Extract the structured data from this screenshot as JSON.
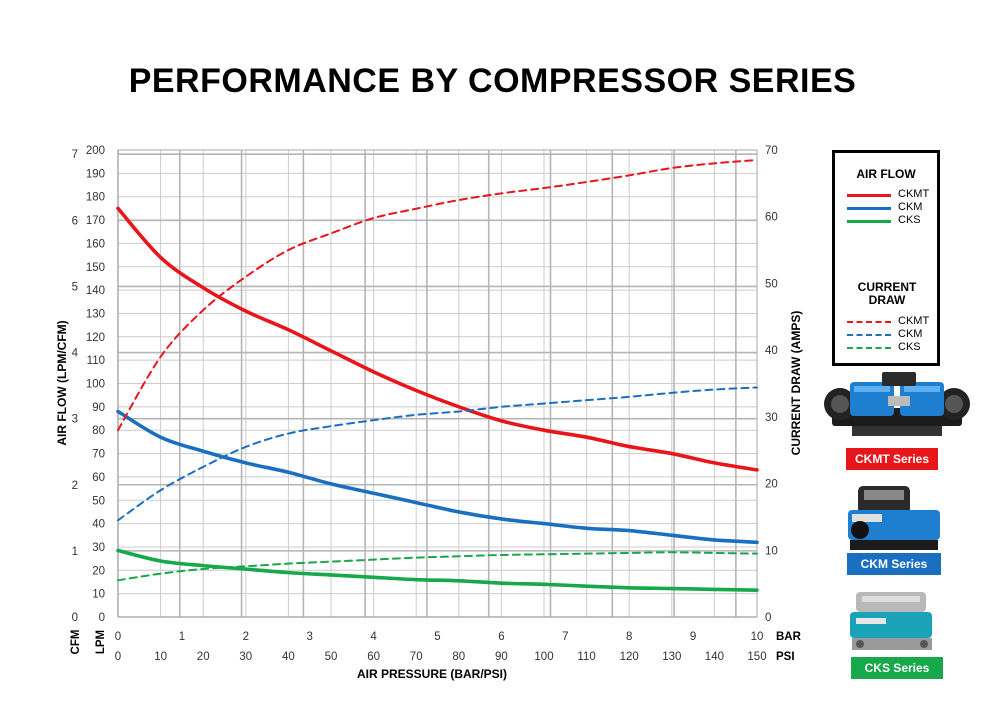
{
  "title": "PERFORMANCE BY COMPRESSOR SERIES",
  "colors": {
    "ckmt": "#e8151b",
    "ckm": "#1a6fc1",
    "cks": "#16a84a",
    "grid": "#cccccc"
  },
  "legend": {
    "airflow_title": "AIR FLOW",
    "current_title_1": "CURRENT",
    "current_title_2": "DRAW",
    "airflow_items": [
      "CKMT",
      "CKM",
      "CKS"
    ],
    "current_items": [
      "CKMT",
      "CKM",
      "CKS"
    ]
  },
  "products": [
    {
      "label": "CKMT Series",
      "color": "#e8151b"
    },
    {
      "label": "CKM Series",
      "color": "#1a6fc1"
    },
    {
      "label": "CKS Series",
      "color": "#16a84a"
    }
  ],
  "chart_data": {
    "type": "line",
    "title": "PERFORMANCE BY COMPRESSOR SERIES",
    "xlabel": "AIR PRESSURE (BAR/PSI)",
    "ylabel_left": "AIR FLOW (LPM/CFM)",
    "ylabel_right": "CURRENT DRAW (AMPS)",
    "x_unit_bar": "BAR",
    "x_unit_psi": "PSI",
    "y_unit_cfm": "CFM",
    "y_unit_lpm": "LPM",
    "xlim_psi": [
      0,
      150
    ],
    "ylim_lpm": [
      0,
      200
    ],
    "ylim_amps": [
      0,
      70
    ],
    "x_ticks_bar": [
      "0",
      "1",
      "2",
      "3",
      "4",
      "5",
      "6",
      "7",
      "8",
      "9",
      "10"
    ],
    "x_ticks_psi": [
      "0",
      "10",
      "20",
      "30",
      "40",
      "50",
      "60",
      "70",
      "80",
      "90",
      "100",
      "110",
      "120",
      "130",
      "140",
      "150"
    ],
    "y_ticks_lpm": [
      "0",
      "10",
      "20",
      "30",
      "40",
      "50",
      "60",
      "70",
      "80",
      "90",
      "100",
      "110",
      "120",
      "130",
      "140",
      "150",
      "160",
      "170",
      "180",
      "190",
      "200"
    ],
    "y_ticks_cfm": [
      "0",
      "1",
      "2",
      "3",
      "4",
      "5",
      "6",
      "7"
    ],
    "y_ticks_amps": [
      "0",
      "10",
      "20",
      "30",
      "40",
      "50",
      "60",
      "70"
    ],
    "grid": true,
    "legend_position": "right",
    "series": [
      {
        "name": "CKMT",
        "kind": "airflow",
        "axis": "lpm",
        "color": "#e8151b",
        "dash": false,
        "x": [
          0,
          10,
          20,
          30,
          40,
          50,
          60,
          70,
          80,
          90,
          100,
          110,
          120,
          130,
          140,
          150
        ],
        "y": [
          175,
          154,
          141,
          131,
          123,
          114,
          105,
          97,
          90,
          84,
          80,
          77,
          73,
          70,
          66,
          63
        ]
      },
      {
        "name": "CKM",
        "kind": "airflow",
        "axis": "lpm",
        "color": "#1a6fc1",
        "dash": false,
        "x": [
          0,
          10,
          20,
          30,
          40,
          50,
          60,
          70,
          80,
          90,
          100,
          110,
          120,
          130,
          140,
          150
        ],
        "y": [
          88,
          77,
          71,
          66,
          62,
          57,
          53,
          49,
          45,
          42,
          40,
          38,
          37,
          35,
          33,
          32
        ]
      },
      {
        "name": "CKS",
        "kind": "airflow",
        "axis": "lpm",
        "color": "#16a84a",
        "dash": false,
        "x": [
          0,
          10,
          20,
          30,
          40,
          50,
          60,
          70,
          80,
          90,
          100,
          110,
          120,
          130,
          140,
          150
        ],
        "y": [
          28.5,
          24,
          22,
          20.5,
          19,
          18,
          17,
          16,
          15.5,
          14.5,
          14,
          13.2,
          12.5,
          12.2,
          11.8,
          11.5
        ]
      },
      {
        "name": "CKMT",
        "kind": "current",
        "axis": "amps",
        "color": "#e8151b",
        "dash": true,
        "x": [
          0,
          10,
          20,
          30,
          40,
          50,
          60,
          70,
          80,
          90,
          100,
          110,
          120,
          130,
          140,
          150
        ],
        "y": [
          28,
          39,
          46,
          51,
          55,
          57.5,
          59.8,
          61.2,
          62.5,
          63.5,
          64.3,
          65.2,
          66.2,
          67.3,
          68,
          68.5
        ]
      },
      {
        "name": "CKM",
        "kind": "current",
        "axis": "amps",
        "color": "#1a6fc1",
        "dash": true,
        "x": [
          0,
          10,
          20,
          30,
          40,
          50,
          60,
          70,
          80,
          90,
          100,
          110,
          120,
          130,
          140,
          150
        ],
        "y": [
          14.5,
          19,
          22.5,
          25.5,
          27.5,
          28.6,
          29.5,
          30.3,
          30.8,
          31.5,
          32,
          32.5,
          33,
          33.6,
          34.1,
          34.4
        ]
      },
      {
        "name": "CKS",
        "kind": "current",
        "axis": "amps",
        "color": "#16a84a",
        "dash": true,
        "x": [
          0,
          10,
          20,
          30,
          40,
          50,
          60,
          70,
          80,
          90,
          100,
          110,
          120,
          130,
          140,
          150
        ],
        "y": [
          5.5,
          6.5,
          7.2,
          7.6,
          8,
          8.3,
          8.6,
          8.9,
          9.1,
          9.3,
          9.4,
          9.5,
          9.6,
          9.7,
          9.6,
          9.5
        ]
      }
    ]
  }
}
